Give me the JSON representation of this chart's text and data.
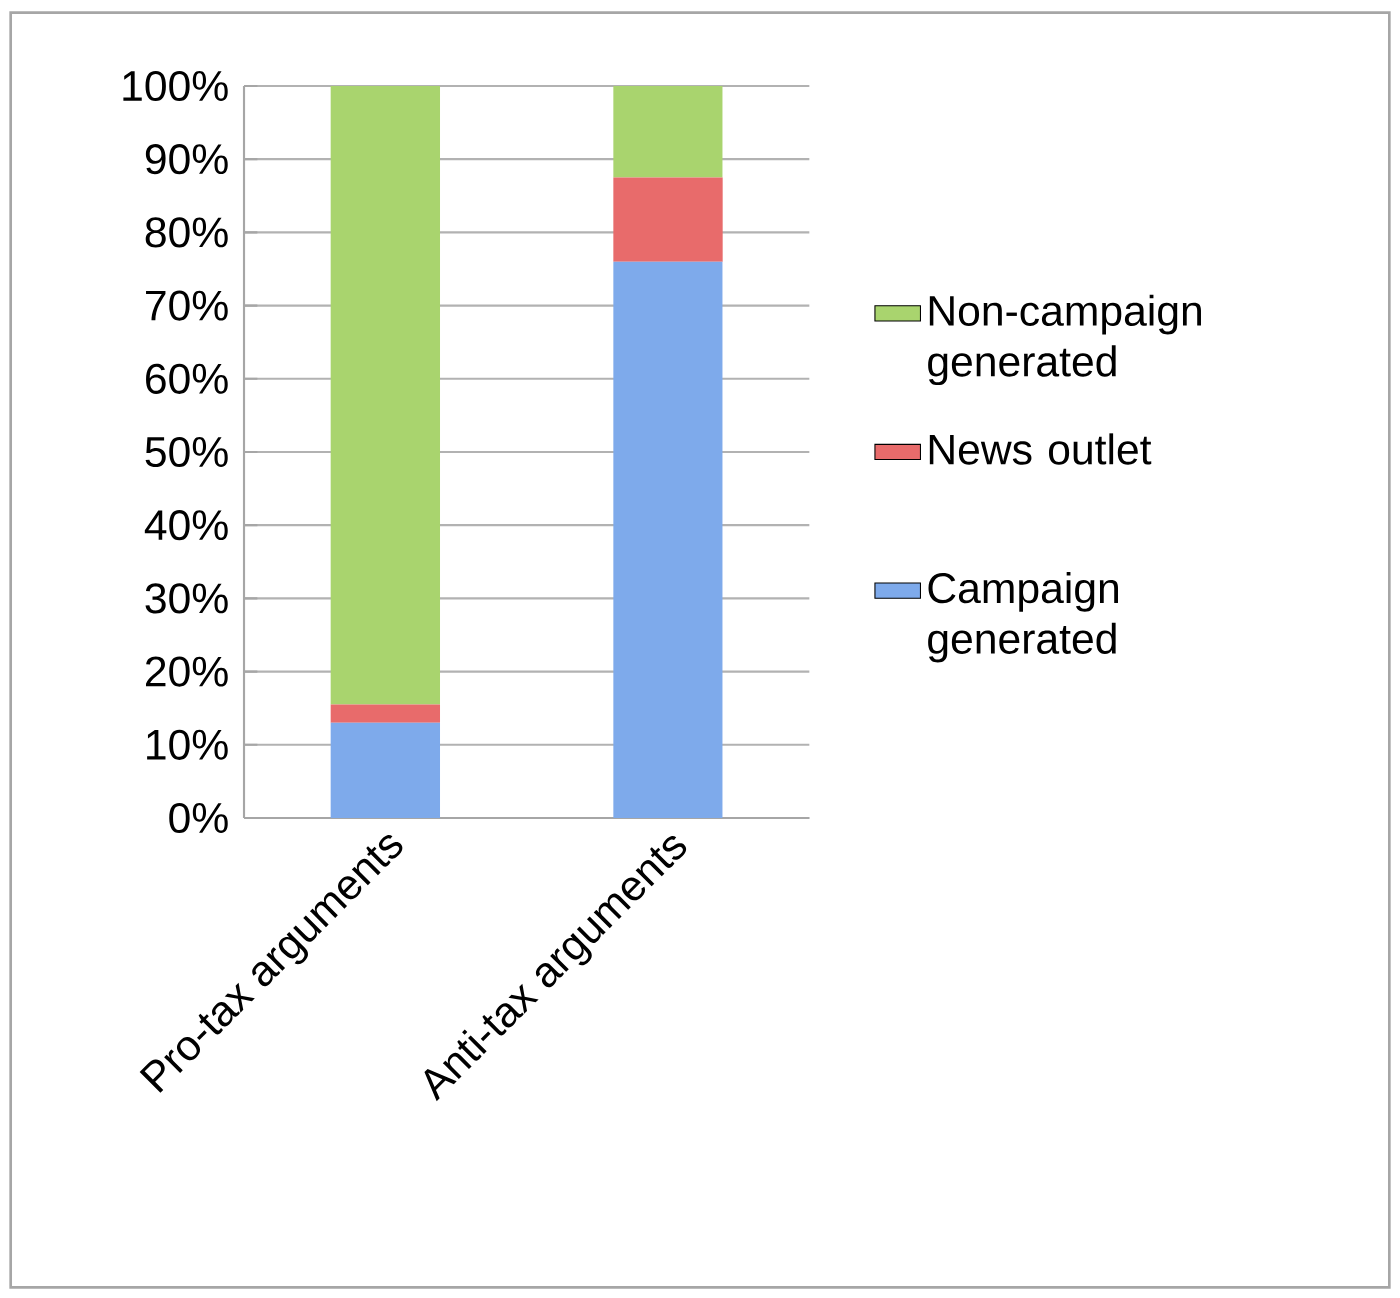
{
  "chart_data": {
    "type": "bar",
    "stacked": true,
    "categories": [
      "Pro-tax arguments",
      "Anti-tax arguments"
    ],
    "series": [
      {
        "name": "Campaign generated",
        "color": "#7eaaeb",
        "values": [
          13,
          76
        ]
      },
      {
        "name": "News outlet",
        "color": "#e86b6b",
        "values": [
          2.5,
          11.5
        ]
      },
      {
        "name": "Non-campaign generated",
        "color": "#a9d46e",
        "values": [
          84.5,
          12.5
        ]
      }
    ],
    "ylim": [
      0,
      100
    ],
    "yticks": [
      {
        "value": 0,
        "label": "0%"
      },
      {
        "value": 10,
        "label": "10%"
      },
      {
        "value": 20,
        "label": "20%"
      },
      {
        "value": 30,
        "label": "30%"
      },
      {
        "value": 40,
        "label": "40%"
      },
      {
        "value": 50,
        "label": "50%"
      },
      {
        "value": 60,
        "label": "60%"
      },
      {
        "value": 70,
        "label": "70%"
      },
      {
        "value": 80,
        "label": "80%"
      },
      {
        "value": 90,
        "label": "90%"
      },
      {
        "value": 100,
        "label": "100%"
      }
    ],
    "grid": "y",
    "legend": "right"
  }
}
